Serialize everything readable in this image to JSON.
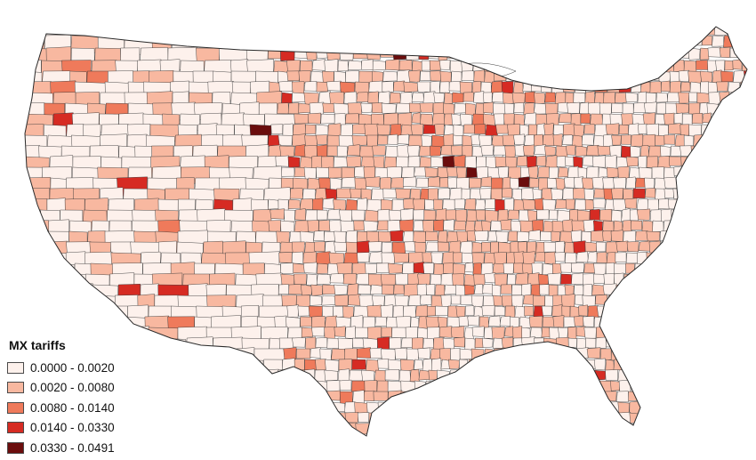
{
  "legend": {
    "title": "MX tariffs",
    "classes": [
      {
        "label": "0.0000 - 0.0020",
        "color": "#fdf1ec"
      },
      {
        "label": "0.0020 - 0.0080",
        "color": "#f8b8a0"
      },
      {
        "label": "0.0080 - 0.0140",
        "color": "#ef7a5b"
      },
      {
        "label": "0.0140 - 0.0330",
        "color": "#d62b23"
      },
      {
        "label": "0.0330 - 0.0491",
        "color": "#6b0d0d"
      }
    ]
  },
  "map": {
    "subject": "contiguous United States counties",
    "border_color": "#3a3a3a"
  }
}
